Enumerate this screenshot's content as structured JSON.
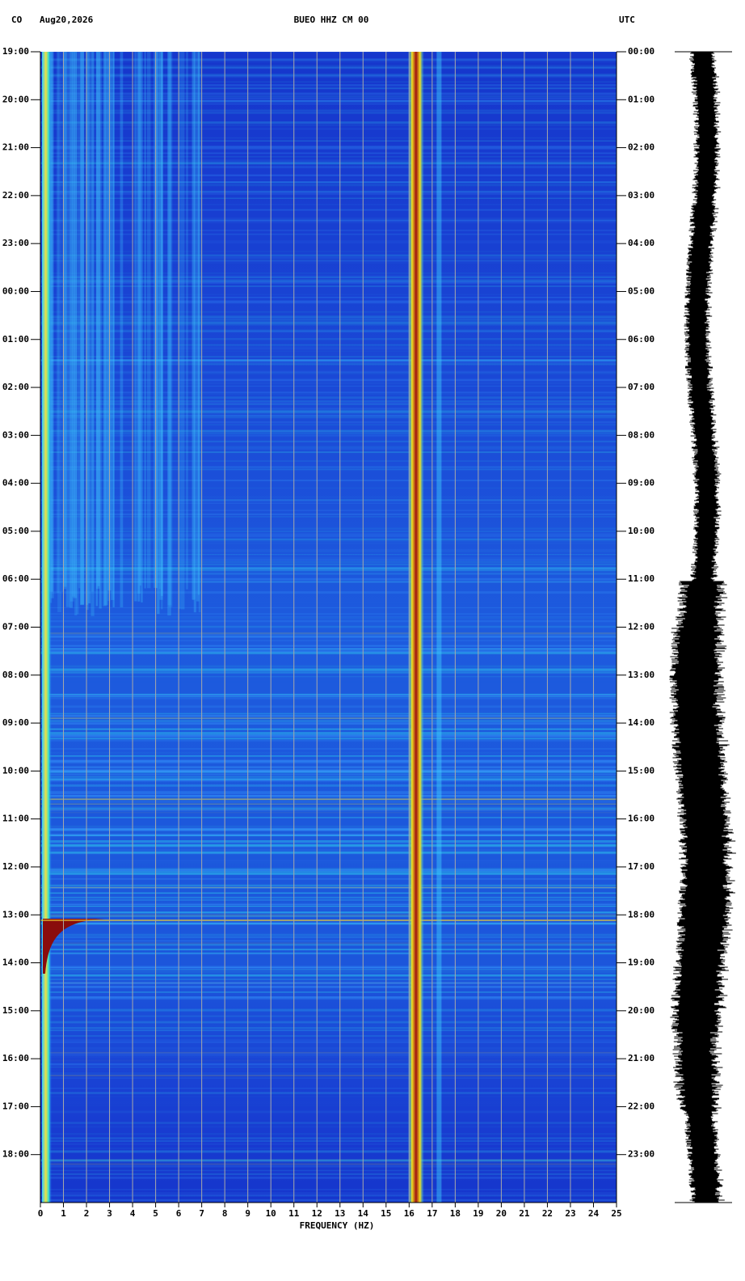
{
  "chart_data": {
    "type": "spectrogram",
    "network": "CO",
    "date": "Aug20,2026",
    "title": "BUEO HHZ CM 00",
    "timezone": "UTC",
    "x_label": "FREQUENCY (HZ)",
    "xlim": [
      0,
      25
    ],
    "xticks": [
      0,
      1,
      2,
      3,
      4,
      5,
      6,
      7,
      8,
      9,
      10,
      11,
      12,
      13,
      14,
      15,
      16,
      17,
      18,
      19,
      20,
      21,
      22,
      23,
      24,
      25
    ],
    "ylim": [
      0,
      24
    ],
    "yticks": [
      {
        "value": 0,
        "label": "19:00"
      },
      {
        "value": 1,
        "label": "20:00"
      },
      {
        "value": 2,
        "label": "21:00"
      },
      {
        "value": 3,
        "label": "22:00"
      },
      {
        "value": 4,
        "label": "23:00"
      },
      {
        "value": 5,
        "label": "00:00"
      },
      {
        "value": 6,
        "label": "01:00"
      },
      {
        "value": 7,
        "label": "02:00"
      },
      {
        "value": 8,
        "label": "03:00"
      },
      {
        "value": 9,
        "label": "04:00"
      },
      {
        "value": 10,
        "label": "05:00"
      },
      {
        "value": 11,
        "label": "06:00"
      },
      {
        "value": 12,
        "label": "07:00"
      },
      {
        "value": 13,
        "label": "08:00"
      },
      {
        "value": 14,
        "label": "09:00"
      },
      {
        "value": 15,
        "label": "10:00"
      },
      {
        "value": 16,
        "label": "11:00"
      },
      {
        "value": 17,
        "label": "12:00"
      },
      {
        "value": 18,
        "label": "13:00"
      },
      {
        "value": 19,
        "label": "14:00"
      },
      {
        "value": 20,
        "label": "15:00"
      },
      {
        "value": 21,
        "label": "16:00"
      },
      {
        "value": 22,
        "label": "17:00"
      },
      {
        "value": 23,
        "label": "18:00"
      }
    ],
    "y2lim": [
      0,
      24
    ],
    "y2ticks": [
      {
        "value": 0,
        "label": "00:00"
      },
      {
        "value": 1,
        "label": "01:00"
      },
      {
        "value": 2,
        "label": "02:00"
      },
      {
        "value": 3,
        "label": "03:00"
      },
      {
        "value": 4,
        "label": "04:00"
      },
      {
        "value": 5,
        "label": "05:00"
      },
      {
        "value": 6,
        "label": "06:00"
      },
      {
        "value": 7,
        "label": "07:00"
      },
      {
        "value": 8,
        "label": "08:00"
      },
      {
        "value": 9,
        "label": "09:00"
      },
      {
        "value": 10,
        "label": "10:00"
      },
      {
        "value": 11,
        "label": "11:00"
      },
      {
        "value": 12,
        "label": "12:00"
      },
      {
        "value": 13,
        "label": "13:00"
      },
      {
        "value": 14,
        "label": "14:00"
      },
      {
        "value": 15,
        "label": "15:00"
      },
      {
        "value": 16,
        "label": "16:00"
      },
      {
        "value": 17,
        "label": "17:00"
      },
      {
        "value": 18,
        "label": "18:00"
      },
      {
        "value": 19,
        "label": "19:00"
      },
      {
        "value": 20,
        "label": "20:00"
      },
      {
        "value": 21,
        "label": "21:00"
      },
      {
        "value": 22,
        "label": "22:00"
      },
      {
        "value": 23,
        "label": "23:00"
      }
    ],
    "grid": true,
    "grid_color": "#a8a8a8",
    "color": "#1636cc"
  }
}
